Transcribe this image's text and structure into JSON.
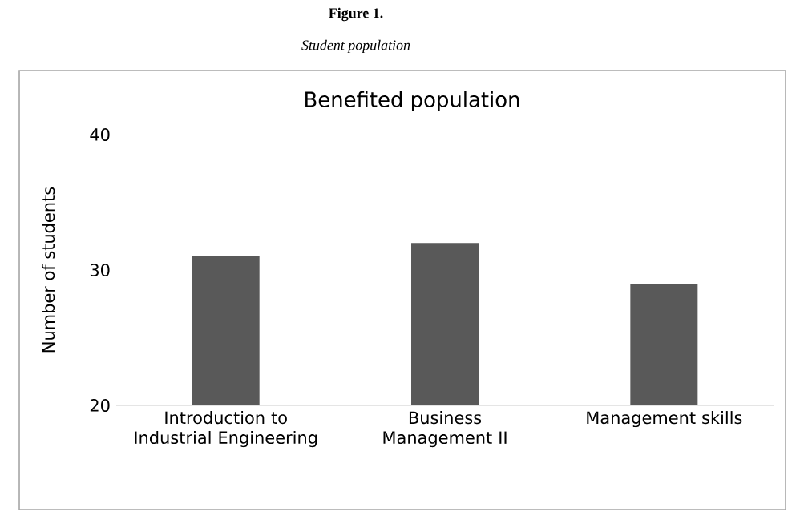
{
  "chart_data": {
    "type": "bar",
    "title": "Benefited population",
    "ylabel": "Number of students",
    "categories": [
      "Introduction to Industrial Engineering",
      "Business Management II",
      "Management skills"
    ],
    "values": [
      31,
      32,
      29
    ],
    "color": "#595959",
    "ylim": [
      20,
      40
    ],
    "yticks": [
      20,
      30,
      40
    ],
    "annotations": [
      "**Figure 1.**",
      "*Student population*"
    ]
  }
}
